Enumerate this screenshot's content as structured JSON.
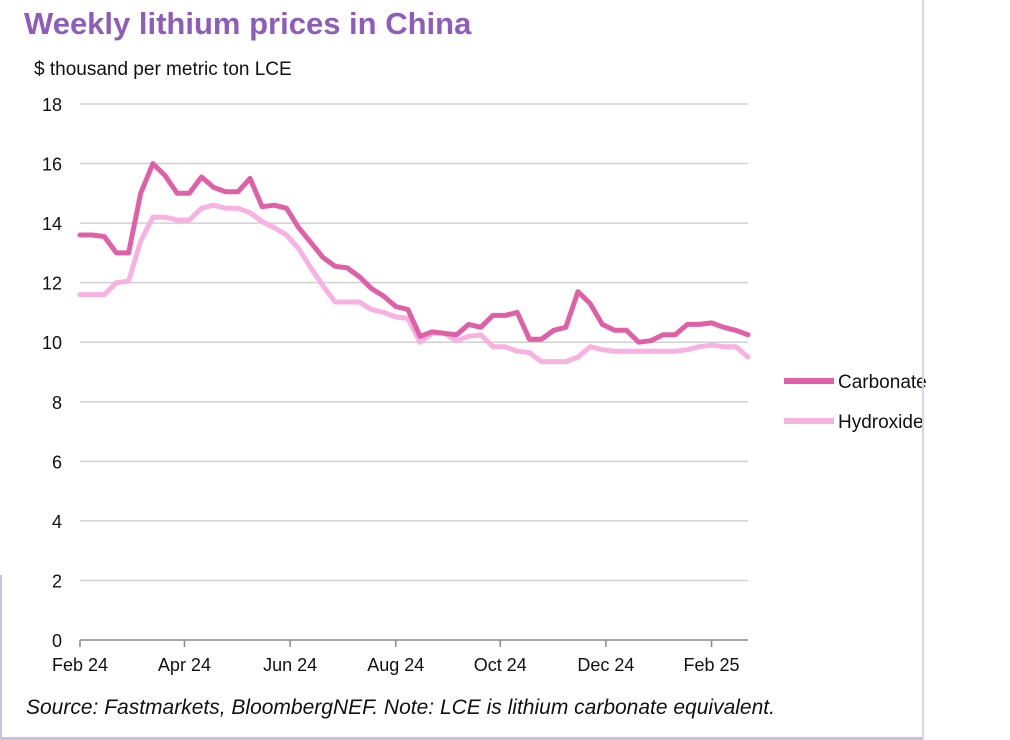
{
  "chart_data": {
    "type": "line",
    "title": "Weekly lithium prices in China",
    "ylabel": "$ thousand per metric ton LCE",
    "xlabel": "",
    "ylim": [
      0,
      18
    ],
    "yticks": [
      0,
      2,
      4,
      6,
      8,
      10,
      12,
      14,
      16,
      18
    ],
    "xlim": [
      0,
      55
    ],
    "xticks": [
      {
        "label": "Feb 24",
        "week": 0
      },
      {
        "label": "Apr 24",
        "week": 8.6
      },
      {
        "label": "Jun 24",
        "week": 17.3
      },
      {
        "label": "Aug 24",
        "week": 26
      },
      {
        "label": "Oct 24",
        "week": 34.6
      },
      {
        "label": "Dec 24",
        "week": 43.3
      },
      {
        "label": "Feb 25",
        "week": 52
      }
    ],
    "grid": true,
    "legend_position": "right",
    "series": [
      {
        "name": "Carbonate",
        "color": "#e060a8",
        "x": [
          0,
          1,
          2,
          3,
          4,
          5,
          6,
          7,
          8,
          9,
          10,
          11,
          12,
          13,
          14,
          15,
          16,
          17,
          18,
          19,
          20,
          21,
          22,
          23,
          24,
          25,
          26,
          27,
          28,
          29,
          30,
          31,
          32,
          33,
          34,
          35,
          36,
          37,
          38,
          39,
          40,
          41,
          42,
          43,
          44,
          45,
          46,
          47,
          48,
          49,
          50,
          51,
          52,
          53,
          54,
          55
        ],
        "values": [
          13.6,
          13.6,
          13.55,
          13.0,
          13.0,
          15.0,
          16.0,
          15.6,
          15.0,
          15.0,
          15.55,
          15.2,
          15.05,
          15.05,
          15.5,
          14.55,
          14.6,
          14.5,
          13.85,
          13.35,
          12.85,
          12.55,
          12.5,
          12.2,
          11.8,
          11.55,
          11.2,
          11.1,
          10.2,
          10.35,
          10.3,
          10.25,
          10.6,
          10.5,
          10.9,
          10.9,
          11.0,
          10.1,
          10.1,
          10.4,
          10.5,
          11.7,
          11.3,
          10.6,
          10.4,
          10.4,
          10.0,
          10.05,
          10.25,
          10.25,
          10.6,
          10.6,
          10.65,
          10.5,
          10.4,
          10.25
        ]
      },
      {
        "name": "Hydroxide",
        "color": "#f7b2e2",
        "x": [
          0,
          1,
          2,
          3,
          4,
          5,
          6,
          7,
          8,
          9,
          10,
          11,
          12,
          13,
          14,
          15,
          16,
          17,
          18,
          19,
          20,
          21,
          22,
          23,
          24,
          25,
          26,
          27,
          28,
          29,
          30,
          31,
          32,
          33,
          34,
          35,
          36,
          37,
          38,
          39,
          40,
          41,
          42,
          43,
          44,
          45,
          46,
          47,
          48,
          49,
          50,
          51,
          52,
          53,
          54,
          55
        ],
        "values": [
          11.6,
          11.6,
          11.6,
          12.0,
          12.05,
          13.4,
          14.2,
          14.2,
          14.1,
          14.1,
          14.5,
          14.6,
          14.5,
          14.5,
          14.35,
          14.05,
          13.85,
          13.6,
          13.15,
          12.5,
          11.9,
          11.35,
          11.35,
          11.35,
          11.1,
          11.0,
          10.85,
          10.8,
          10.0,
          10.3,
          10.3,
          10.05,
          10.2,
          10.25,
          9.85,
          9.85,
          9.7,
          9.65,
          9.35,
          9.35,
          9.35,
          9.5,
          9.85,
          9.75,
          9.7,
          9.7,
          9.7,
          9.7,
          9.7,
          9.7,
          9.75,
          9.85,
          9.9,
          9.85,
          9.85,
          9.5
        ]
      }
    ],
    "source_note": "Source: Fastmarkets, BloombergNEF. Note: LCE is lithium carbonate equivalent."
  }
}
